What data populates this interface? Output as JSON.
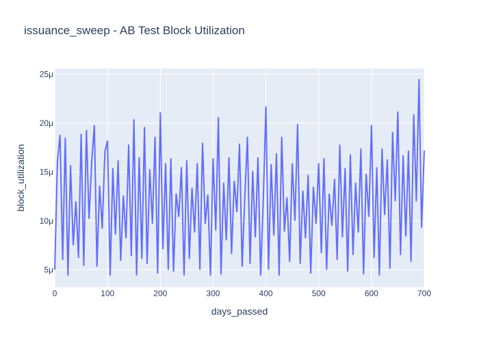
{
  "chart_data": {
    "type": "line",
    "title": "issuance_sweep - AB Test Block Utilization",
    "xlabel": "days_passed",
    "ylabel": "block_utilization",
    "xlim": [
      0,
      700
    ],
    "ylim": [
      3.2,
      25.6
    ],
    "y_unit_suffix": "μ",
    "x_ticks": [
      0,
      100,
      200,
      300,
      400,
      500,
      600,
      700
    ],
    "y_ticks": [
      5,
      10,
      15,
      20,
      25
    ],
    "grid": true,
    "legend": "none",
    "line_color": "#636efa",
    "plot_bg": "#e5ecf6",
    "series": [
      {
        "x": [
          0,
          5,
          10,
          15,
          20,
          25,
          30,
          35,
          40,
          45,
          50,
          55,
          60,
          65,
          70,
          75,
          80,
          85,
          90,
          95,
          100,
          105,
          110,
          115,
          120,
          125,
          130,
          135,
          140,
          145,
          150,
          155,
          160,
          165,
          170,
          175,
          180,
          185,
          190,
          195,
          200,
          205,
          210,
          215,
          220,
          225,
          230,
          235,
          240,
          245,
          250,
          255,
          260,
          265,
          270,
          275,
          280,
          285,
          290,
          295,
          300,
          305,
          310,
          315,
          320,
          325,
          330,
          335,
          340,
          345,
          350,
          355,
          360,
          365,
          370,
          375,
          380,
          385,
          390,
          395,
          400,
          405,
          410,
          415,
          420,
          425,
          430,
          435,
          440,
          445,
          450,
          455,
          460,
          465,
          470,
          475,
          480,
          485,
          490,
          495,
          500,
          505,
          510,
          515,
          520,
          525,
          530,
          535,
          540,
          545,
          550,
          555,
          560,
          565,
          570,
          575,
          580,
          585,
          590,
          595,
          600,
          605,
          610,
          615,
          620,
          625,
          630,
          635,
          640,
          645,
          650,
          655,
          660,
          665,
          670,
          675,
          680,
          685,
          690,
          695,
          700
        ],
        "y": [
          5.0,
          16.0,
          18.8,
          6.0,
          18.5,
          4.4,
          15.7,
          7.5,
          12.0,
          6.2,
          18.9,
          5.4,
          19.3,
          10.2,
          16.0,
          19.8,
          5.3,
          13.6,
          9.2,
          17.1,
          18.2,
          4.4,
          15.4,
          8.6,
          16.2,
          5.9,
          12.6,
          8.2,
          17.8,
          6.4,
          20.4,
          4.4,
          16.5,
          6.1,
          19.6,
          5.6,
          15.3,
          9.7,
          18.6,
          4.6,
          21.1,
          7.1,
          15.9,
          5.0,
          16.4,
          4.8,
          12.8,
          10.4,
          15.5,
          4.4,
          16.2,
          6.1,
          13.4,
          8.8,
          15.9,
          5.0,
          18.0,
          9.7,
          12.7,
          4.4,
          16.4,
          9.0,
          20.6,
          4.5,
          13.9,
          8.0,
          16.5,
          6.6,
          14.1,
          10.9,
          17.9,
          5.3,
          12.3,
          18.6,
          5.6,
          15.1,
          8.3,
          16.5,
          4.4,
          12.0,
          21.7,
          5.0,
          15.8,
          8.5,
          16.9,
          4.4,
          18.6,
          8.9,
          12.4,
          5.8,
          15.9,
          10.0,
          19.9,
          5.6,
          13.1,
          8.2,
          14.7,
          4.6,
          13.5,
          9.7,
          15.9,
          6.7,
          16.4,
          5.0,
          12.8,
          9.5,
          14.3,
          6.0,
          17.8,
          8.3,
          15.4,
          4.8,
          16.8,
          6.5,
          13.9,
          8.8,
          17.4,
          4.5,
          14.8,
          10.4,
          19.8,
          6.2,
          15.5,
          4.4,
          17.4,
          10.6,
          16.3,
          5.1,
          19.1,
          12.0,
          21.2,
          6.5,
          16.7,
          8.4,
          17.2,
          5.8,
          20.9,
          12.0,
          24.5,
          9.3,
          17.2
        ]
      }
    ]
  }
}
